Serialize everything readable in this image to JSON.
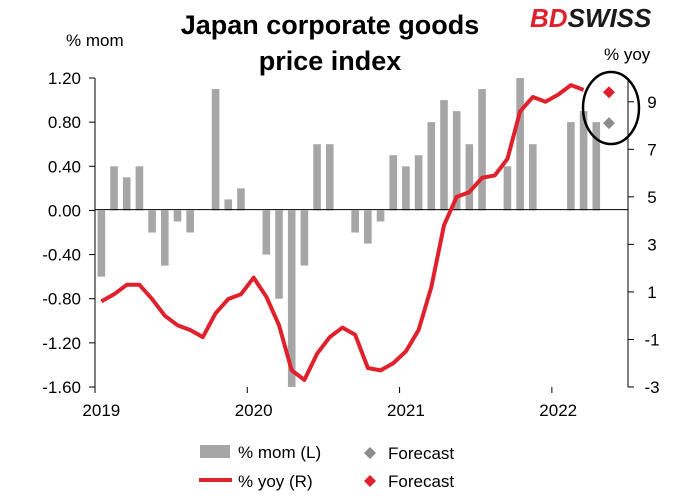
{
  "chart_data": {
    "type": "bar",
    "title": "Japan corporate goods price index",
    "title_lines": [
      "Japan corporate goods",
      "price index"
    ],
    "left_axis_label": "% mom",
    "right_axis_label": "% yoy",
    "left_ylim": [
      -1.6,
      1.2
    ],
    "left_ticks": [
      "1.20",
      "0.80",
      "0.40",
      "0.00",
      "-0.40",
      "-0.80",
      "-1.20",
      "-1.60"
    ],
    "right_ylim": [
      -3,
      10
    ],
    "right_ticks": [
      "9",
      "7",
      "5",
      "3",
      "1",
      "-1",
      "-3"
    ],
    "x_tick_labels": [
      "2019",
      "2020",
      "2021",
      "2022"
    ],
    "months": [
      "2019-01",
      "2019-02",
      "2019-03",
      "2019-04",
      "2019-05",
      "2019-06",
      "2019-07",
      "2019-08",
      "2019-09",
      "2019-10",
      "2019-11",
      "2019-12",
      "2020-01",
      "2020-02",
      "2020-03",
      "2020-04",
      "2020-05",
      "2020-06",
      "2020-07",
      "2020-08",
      "2020-09",
      "2020-10",
      "2020-11",
      "2020-12",
      "2021-01",
      "2021-02",
      "2021-03",
      "2021-04",
      "2021-05",
      "2021-06",
      "2021-07",
      "2021-08",
      "2021-09",
      "2021-10",
      "2021-11",
      "2021-12",
      "2022-01",
      "2022-02",
      "2022-03",
      "2022-04"
    ],
    "mom_series": {
      "name": "% mom (L)",
      "values": [
        -0.6,
        0.4,
        0.3,
        0.4,
        -0.2,
        -0.5,
        -0.1,
        -0.2,
        0.0,
        1.1,
        0.1,
        0.2,
        0.0,
        -0.4,
        -0.8,
        -1.6,
        -0.5,
        0.6,
        0.6,
        0.0,
        -0.2,
        -0.3,
        -0.1,
        0.5,
        0.4,
        0.5,
        0.8,
        1.0,
        0.9,
        0.6,
        1.1,
        0.0,
        0.4,
        1.2,
        0.6,
        0.0,
        0.0,
        0.8,
        0.9,
        0.8
      ]
    },
    "yoy_series": {
      "name": "% yoy (R)",
      "values": [
        0.6,
        0.9,
        1.3,
        1.3,
        0.7,
        0.0,
        -0.4,
        -0.6,
        -0.9,
        0.1,
        0.7,
        0.9,
        1.6,
        0.8,
        -0.4,
        -2.3,
        -2.7,
        -1.6,
        -0.9,
        -0.5,
        -0.8,
        -2.2,
        -2.3,
        -2.0,
        -1.5,
        -0.6,
        1.2,
        3.8,
        5.0,
        5.2,
        5.8,
        5.9,
        6.6,
        8.6,
        9.2,
        9.0,
        9.3,
        9.7,
        9.5,
        null
      ]
    },
    "forecast_mom": {
      "name": "Forecast",
      "month_index": 40,
      "value": 0.8,
      "color": "#8c8c8c"
    },
    "forecast_yoy": {
      "name": "Forecast",
      "month_index": 40,
      "value": 9.4,
      "color": "#e0202a"
    },
    "colors": {
      "bars": "#a6a6a6",
      "line": "#e0202a",
      "forecast_gray": "#8c8c8c",
      "forecast_red": "#e0202a"
    },
    "legend": [
      {
        "label": "% mom (L)",
        "symbol": "bar"
      },
      {
        "label": "Forecast",
        "symbol": "diamond-gray"
      },
      {
        "label": "% yoy (R)",
        "symbol": "line"
      },
      {
        "label": "Forecast",
        "symbol": "diamond-red"
      }
    ],
    "legend_placement": "bottom",
    "grid": false,
    "annotation": "black ellipse around the forecast points"
  },
  "brand": {
    "part1": "BD",
    "part2": "SWISS",
    "color_red": "#e0202a",
    "color_dark": "#1a1a1a"
  }
}
